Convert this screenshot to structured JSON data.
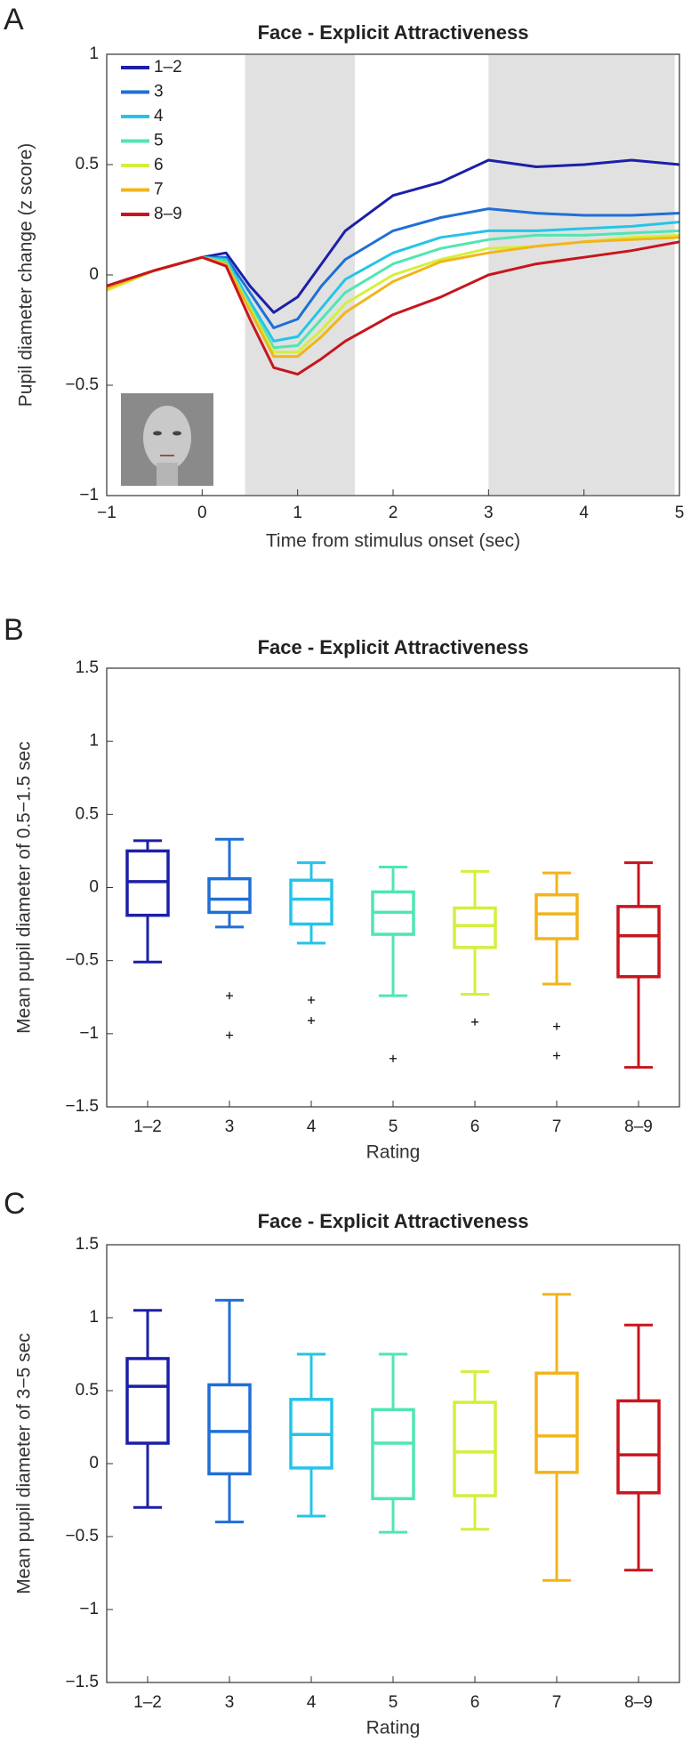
{
  "chart_data": [
    {
      "type": "line",
      "panel": "A",
      "title": "Face - Explicit Attractiveness",
      "xlabel": "Time from stimulus onset (sec)",
      "ylabel": "Pupil diameter change (z score)",
      "x": [
        -1,
        -0.5,
        0,
        0.25,
        0.5,
        0.75,
        1,
        1.25,
        1.5,
        2,
        2.5,
        3,
        3.5,
        4,
        4.5,
        5
      ],
      "series": [
        {
          "name": "1–2",
          "color": "#1c1fa8",
          "values": [
            -0.05,
            0.02,
            0.08,
            0.1,
            -0.05,
            -0.17,
            -0.1,
            0.05,
            0.2,
            0.36,
            0.42,
            0.52,
            0.49,
            0.5,
            0.52,
            0.5
          ]
        },
        {
          "name": "3",
          "color": "#1f6fd6",
          "values": [
            -0.05,
            0.02,
            0.08,
            0.08,
            -0.08,
            -0.24,
            -0.2,
            -0.05,
            0.07,
            0.2,
            0.26,
            0.3,
            0.28,
            0.27,
            0.27,
            0.28
          ]
        },
        {
          "name": "4",
          "color": "#25c4e8",
          "values": [
            -0.06,
            0.02,
            0.08,
            0.07,
            -0.12,
            -0.3,
            -0.28,
            -0.15,
            -0.02,
            0.1,
            0.17,
            0.2,
            0.2,
            0.21,
            0.22,
            0.24
          ]
        },
        {
          "name": "5",
          "color": "#4fe6b2",
          "values": [
            -0.07,
            0.02,
            0.08,
            0.06,
            -0.14,
            -0.33,
            -0.32,
            -0.2,
            -0.08,
            0.05,
            0.12,
            0.16,
            0.18,
            0.18,
            0.19,
            0.2
          ]
        },
        {
          "name": "6",
          "color": "#d4ef3b",
          "values": [
            -0.07,
            0.02,
            0.08,
            0.05,
            -0.15,
            -0.35,
            -0.35,
            -0.25,
            -0.13,
            0.0,
            0.07,
            0.12,
            0.13,
            0.15,
            0.17,
            0.18
          ]
        },
        {
          "name": "7",
          "color": "#f2b41b",
          "values": [
            -0.06,
            0.02,
            0.08,
            0.05,
            -0.16,
            -0.37,
            -0.37,
            -0.28,
            -0.17,
            -0.03,
            0.06,
            0.1,
            0.13,
            0.15,
            0.16,
            0.17
          ]
        },
        {
          "name": "8–9",
          "color": "#c8151d",
          "values": [
            -0.05,
            0.02,
            0.08,
            0.04,
            -0.2,
            -0.42,
            -0.45,
            -0.38,
            -0.3,
            -0.18,
            -0.1,
            0.0,
            0.05,
            0.08,
            0.11,
            0.15
          ]
        }
      ],
      "shaded_regions": [
        [
          0.45,
          1.6
        ],
        [
          3,
          4.95
        ]
      ],
      "xlim": [
        -1,
        5
      ],
      "xticks": [
        {
          "value": -1,
          "label": "−1"
        },
        0,
        1,
        2,
        3,
        4,
        5
      ],
      "ylim": [
        -1,
        1
      ],
      "yticks": [
        {
          "value": -1,
          "label": "−1"
        },
        {
          "value": -0.5,
          "label": "−0.5"
        },
        0,
        0.5,
        1
      ],
      "legend": "upper-left"
    },
    {
      "type": "box",
      "panel": "B",
      "title": "Face - Explicit Attractiveness",
      "xlabel": "Rating",
      "ylabel": "Mean pupil diameter of 0.5−1.5 sec",
      "categories": [
        "1–2",
        "3",
        "4",
        "5",
        "6",
        "7",
        "8–9"
      ],
      "colors": [
        "#1c1fa8",
        "#1f6fd6",
        "#25c4e8",
        "#4fe6b2",
        "#d4ef3b",
        "#f2b41b",
        "#c8151d"
      ],
      "min": [
        -0.51,
        -0.27,
        -0.38,
        -0.74,
        -0.73,
        -0.66,
        -1.23
      ],
      "q1": [
        -0.19,
        -0.17,
        -0.25,
        -0.32,
        -0.41,
        -0.35,
        -0.61
      ],
      "median": [
        0.04,
        -0.08,
        -0.08,
        -0.17,
        -0.26,
        -0.18,
        -0.33
      ],
      "q3": [
        0.25,
        0.06,
        0.05,
        -0.03,
        -0.14,
        -0.05,
        -0.13
      ],
      "max": [
        0.32,
        0.33,
        0.17,
        0.14,
        0.11,
        0.1,
        0.17
      ],
      "outliers": [
        [],
        [
          -0.74,
          -1.01
        ],
        [
          -0.77,
          -0.91
        ],
        [
          -1.17
        ],
        [
          -0.92
        ],
        [
          -0.95,
          -1.15
        ],
        []
      ],
      "ylim": [
        -1.5,
        1.5
      ],
      "yticks": [
        {
          "value": -1.5,
          "label": "−1.5"
        },
        {
          "value": -1,
          "label": "−1"
        },
        {
          "value": -0.5,
          "label": "−0.5"
        },
        0,
        0.5,
        1,
        1.5
      ]
    },
    {
      "type": "box",
      "panel": "C",
      "title": "Face - Explicit Attractiveness",
      "xlabel": "Rating",
      "ylabel": "Mean pupil diameter of 3−5 sec",
      "categories": [
        "1–2",
        "3",
        "4",
        "5",
        "6",
        "7",
        "8–9"
      ],
      "colors": [
        "#1c1fa8",
        "#1f6fd6",
        "#25c4e8",
        "#4fe6b2",
        "#d4ef3b",
        "#f2b41b",
        "#c8151d"
      ],
      "min": [
        -0.3,
        -0.4,
        -0.36,
        -0.47,
        -0.45,
        -0.8,
        -0.73
      ],
      "q1": [
        0.14,
        -0.07,
        -0.03,
        -0.24,
        -0.22,
        -0.06,
        -0.2
      ],
      "median": [
        0.53,
        0.22,
        0.2,
        0.14,
        0.08,
        0.19,
        0.06
      ],
      "q3": [
        0.72,
        0.54,
        0.44,
        0.37,
        0.42,
        0.62,
        0.43
      ],
      "max": [
        1.05,
        1.12,
        0.75,
        0.75,
        0.63,
        1.16,
        0.95
      ],
      "outliers": [
        [],
        [],
        [],
        [],
        [],
        [],
        []
      ],
      "ylim": [
        -1.5,
        1.5
      ],
      "yticks": [
        {
          "value": -1.5,
          "label": "−1.5"
        },
        {
          "value": -1,
          "label": "−1"
        },
        {
          "value": -0.5,
          "label": "−0.5"
        },
        0,
        0.5,
        1,
        1.5
      ]
    }
  ]
}
